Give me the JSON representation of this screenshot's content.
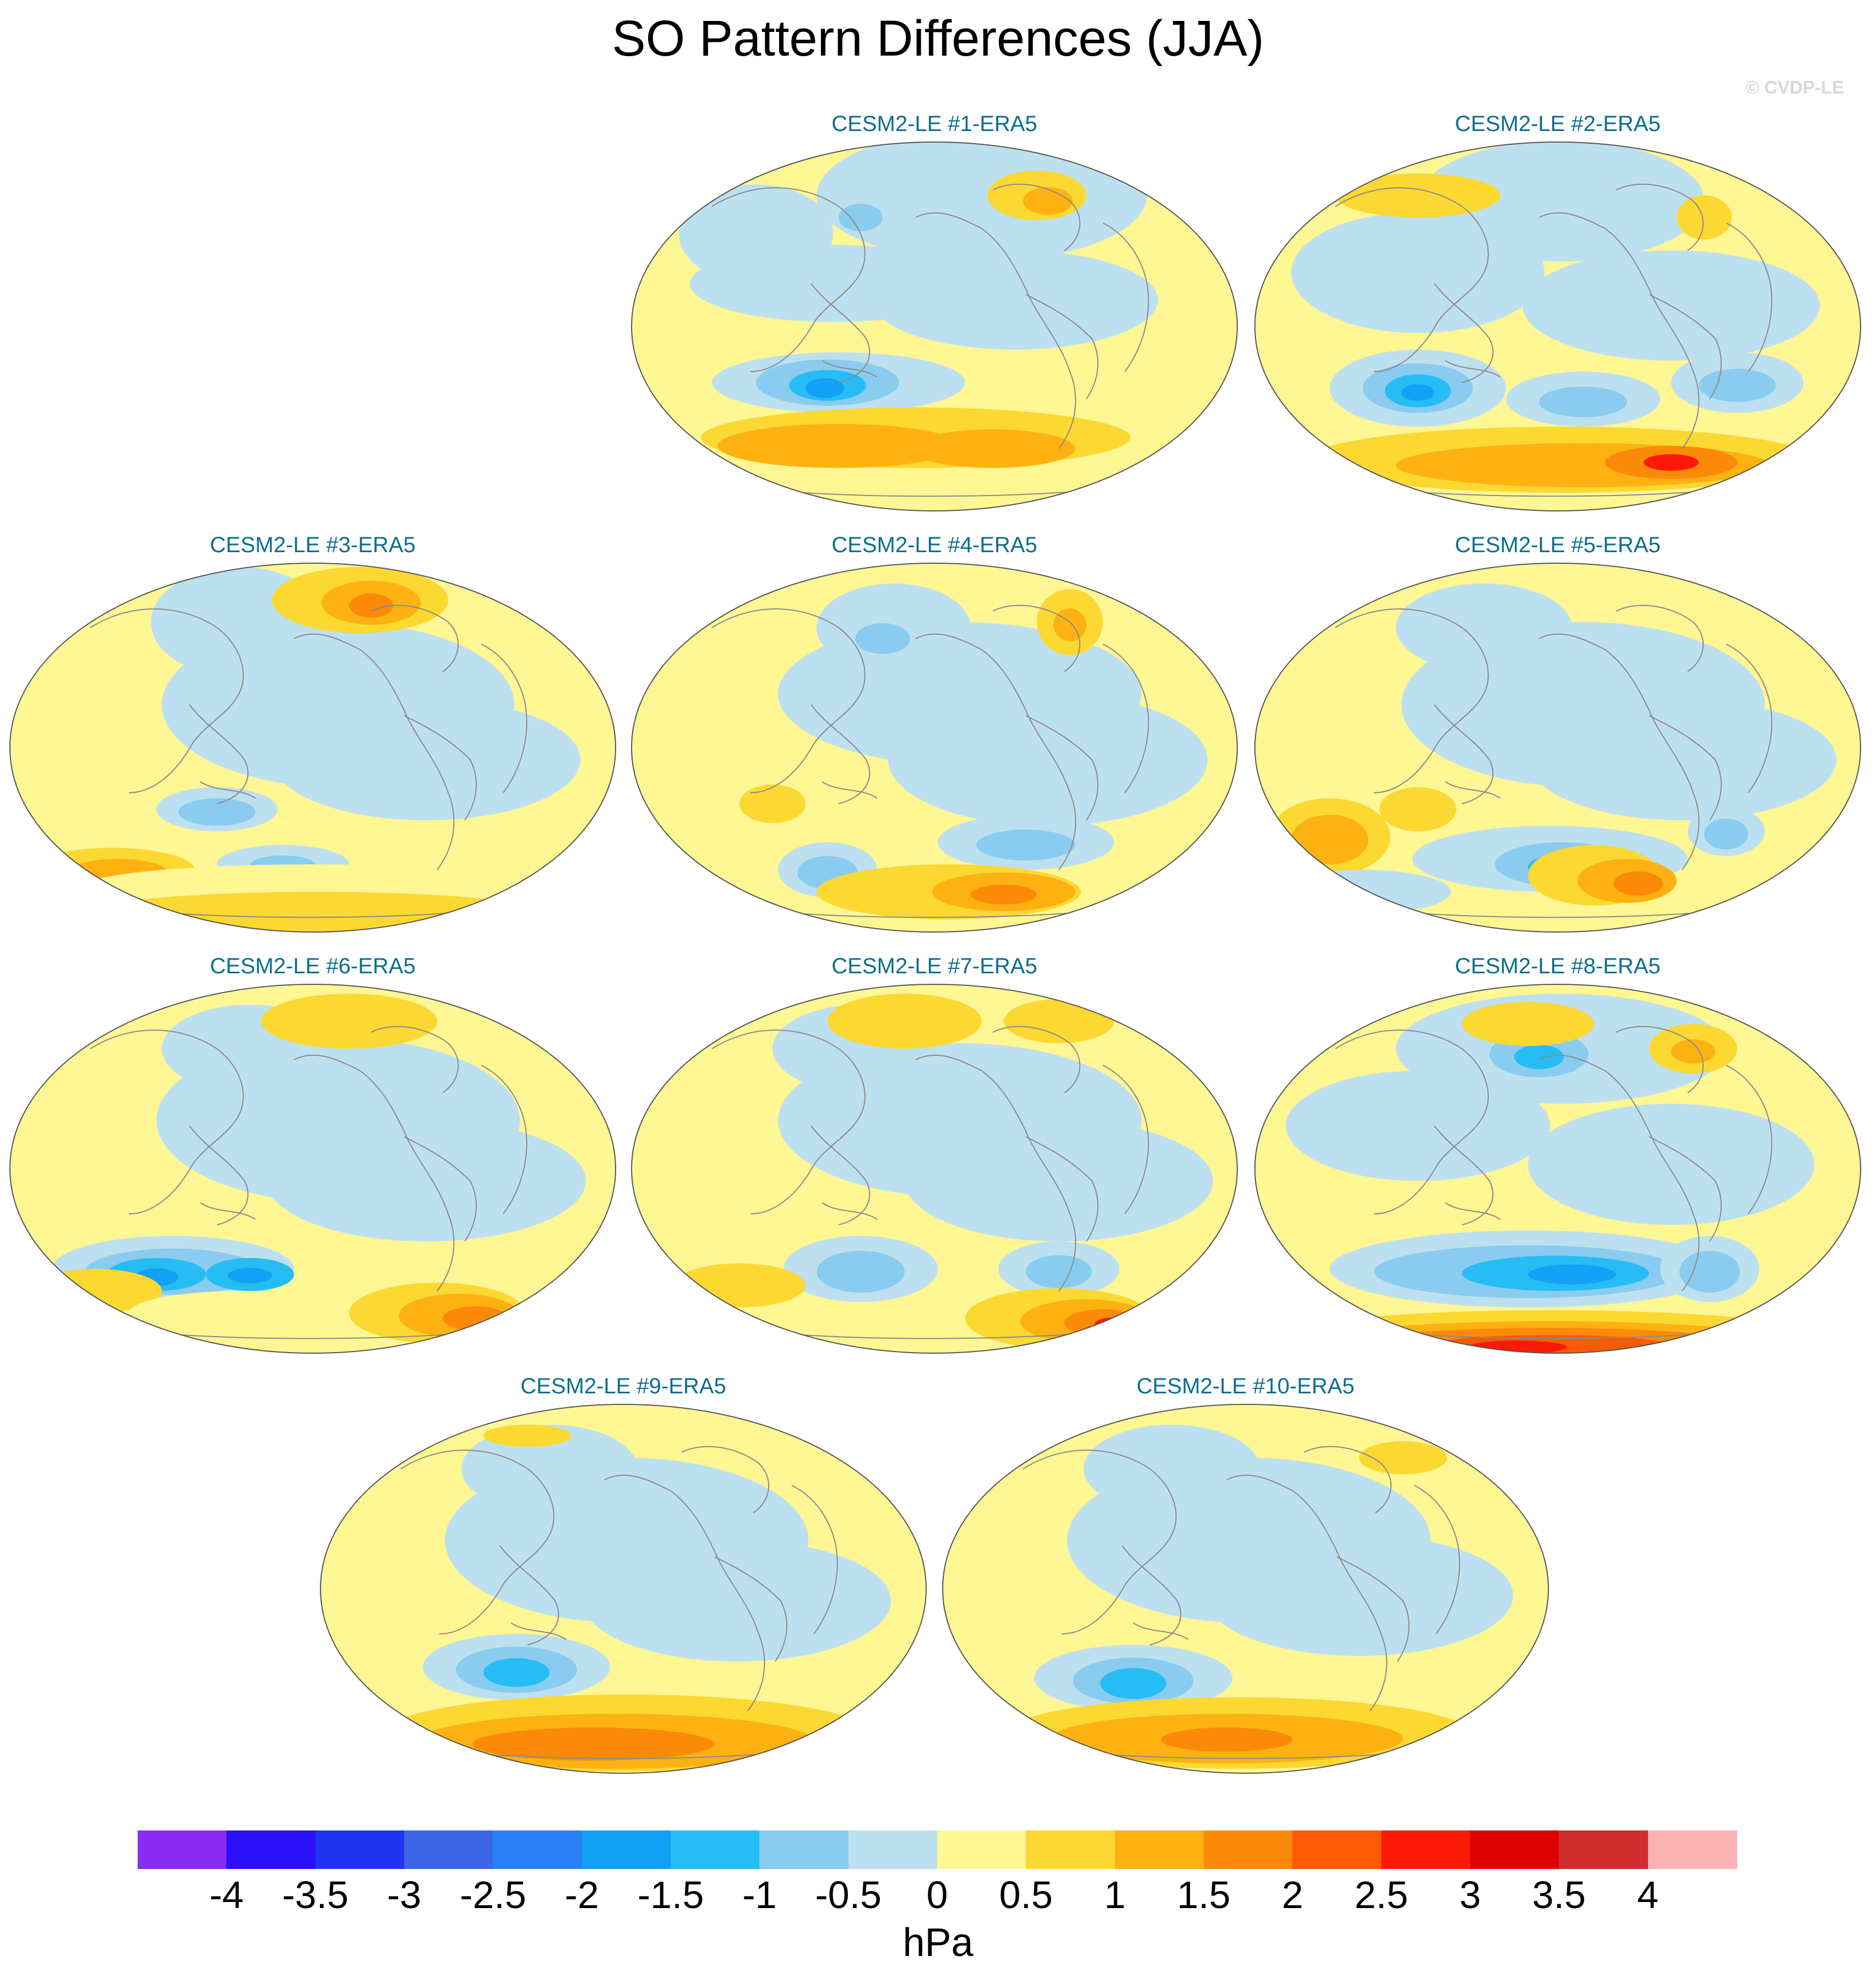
{
  "title": "SO Pattern Differences (JJA)",
  "watermark": "© CVDP-LE",
  "units": "hPa",
  "colors": {
    "coastline": "#8a8a8a",
    "panel_title": "#0b6e8e"
  },
  "colorbar": {
    "levels": [
      "-4",
      "-3.5",
      "-3",
      "-2.5",
      "-2",
      "-1.5",
      "-1",
      "-0.5",
      "0",
      "0.5",
      "1",
      "1.5",
      "2",
      "2.5",
      "3",
      "3.5",
      "4"
    ],
    "colors": [
      "#8a2cf2",
      "#2a10fb",
      "#1f34f0",
      "#3c66e5",
      "#2a7ff5",
      "#13a0f5",
      "#25bdf4",
      "#89ccef",
      "#bde0f1",
      "#fff694",
      "#fcd832",
      "#fdb212",
      "#fb8a09",
      "#fb5a06",
      "#fc1a07",
      "#df0202",
      "#d02b2d",
      "#fbb3b5"
    ]
  },
  "panels": [
    {
      "title": "CESM2-LE #1-ERA5"
    },
    {
      "title": "CESM2-LE #2-ERA5"
    },
    {
      "title": "CESM2-LE #3-ERA5"
    },
    {
      "title": "CESM2-LE #4-ERA5"
    },
    {
      "title": "CESM2-LE #5-ERA5"
    },
    {
      "title": "CESM2-LE #6-ERA5"
    },
    {
      "title": "CESM2-LE #7-ERA5"
    },
    {
      "title": "CESM2-LE #8-ERA5"
    },
    {
      "title": "CESM2-LE #9-ERA5"
    },
    {
      "title": "CESM2-LE #10-ERA5"
    }
  ]
}
